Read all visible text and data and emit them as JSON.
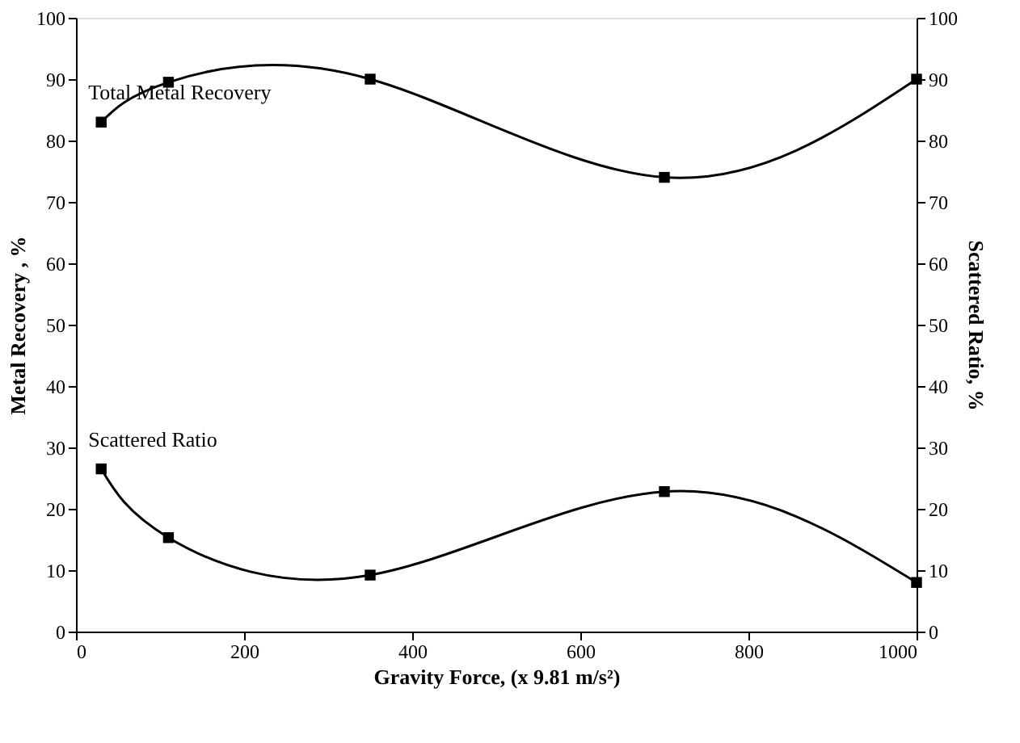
{
  "chart_data": {
    "type": "line",
    "xlabel": "Gravity Force, (x 9.81 m/s²)",
    "ylabel": "Metal Recovery , %",
    "y2label": "Scattered Ratio, %",
    "xlim": [
      0,
      1000
    ],
    "xticks": [
      0,
      200,
      400,
      600,
      800,
      1000
    ],
    "ylim": [
      0,
      100
    ],
    "yticks": [
      0,
      10,
      20,
      30,
      40,
      50,
      60,
      70,
      80,
      90,
      100
    ],
    "y2lim": [
      0,
      100
    ],
    "y2ticks": [
      0,
      10,
      20,
      30,
      40,
      50,
      60,
      70,
      80,
      90,
      100
    ],
    "grid": false,
    "legend": false,
    "marker": "square",
    "series": [
      {
        "name": "Total Metal Recovery",
        "color": "#000000",
        "x": [
          30,
          110,
          350,
          700,
          1000
        ],
        "values": [
          83,
          89.5,
          90,
          74,
          90
        ]
      },
      {
        "name": "Scattered Ratio",
        "color": "#000000",
        "x": [
          30,
          110,
          350,
          700,
          1000
        ],
        "values": [
          26.5,
          15.3,
          9.2,
          22.8,
          8
        ],
        "axis": "y2"
      }
    ]
  }
}
